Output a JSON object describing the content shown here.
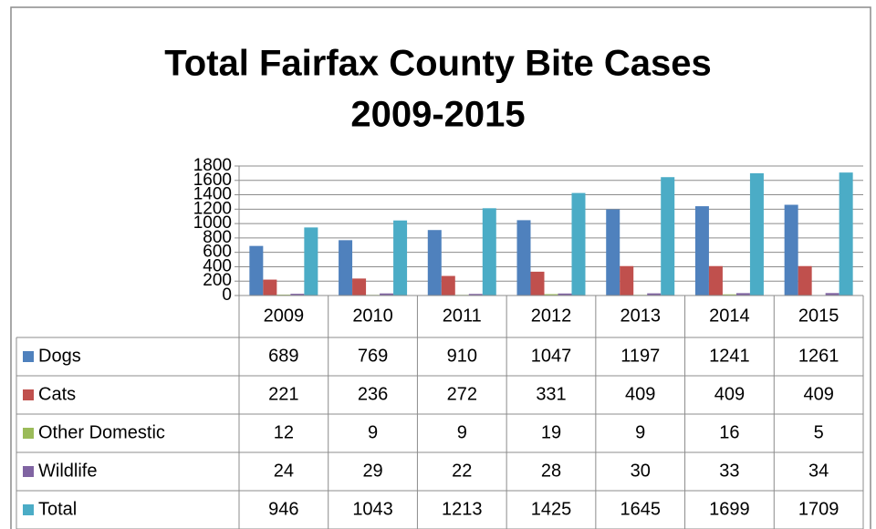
{
  "chart_data": {
    "type": "bar",
    "title": "Total Fairfax County Bite Cases",
    "subtitle": "2009-2015",
    "categories": [
      "2009",
      "2010",
      "2011",
      "2012",
      "2013",
      "2014",
      "2015"
    ],
    "series": [
      {
        "name": "Dogs",
        "color": "#4f81bd",
        "values": [
          689,
          769,
          910,
          1047,
          1197,
          1241,
          1261
        ]
      },
      {
        "name": "Cats",
        "color": "#c0504d",
        "values": [
          221,
          236,
          272,
          331,
          409,
          409,
          409
        ]
      },
      {
        "name": "Other Domestic",
        "color": "#9bbb59",
        "values": [
          12,
          9,
          9,
          19,
          9,
          16,
          5
        ]
      },
      {
        "name": "Wildlife",
        "color": "#8064a2",
        "values": [
          24,
          29,
          22,
          28,
          30,
          33,
          34
        ]
      },
      {
        "name": "Total",
        "color": "#4bacc6",
        "values": [
          946,
          1043,
          1213,
          1425,
          1645,
          1699,
          1709
        ]
      }
    ],
    "ylim": [
      0,
      1800
    ],
    "yticks": [
      0,
      200,
      400,
      600,
      800,
      1000,
      1200,
      1400,
      1600,
      1800
    ],
    "grid": true,
    "data_table": true
  }
}
